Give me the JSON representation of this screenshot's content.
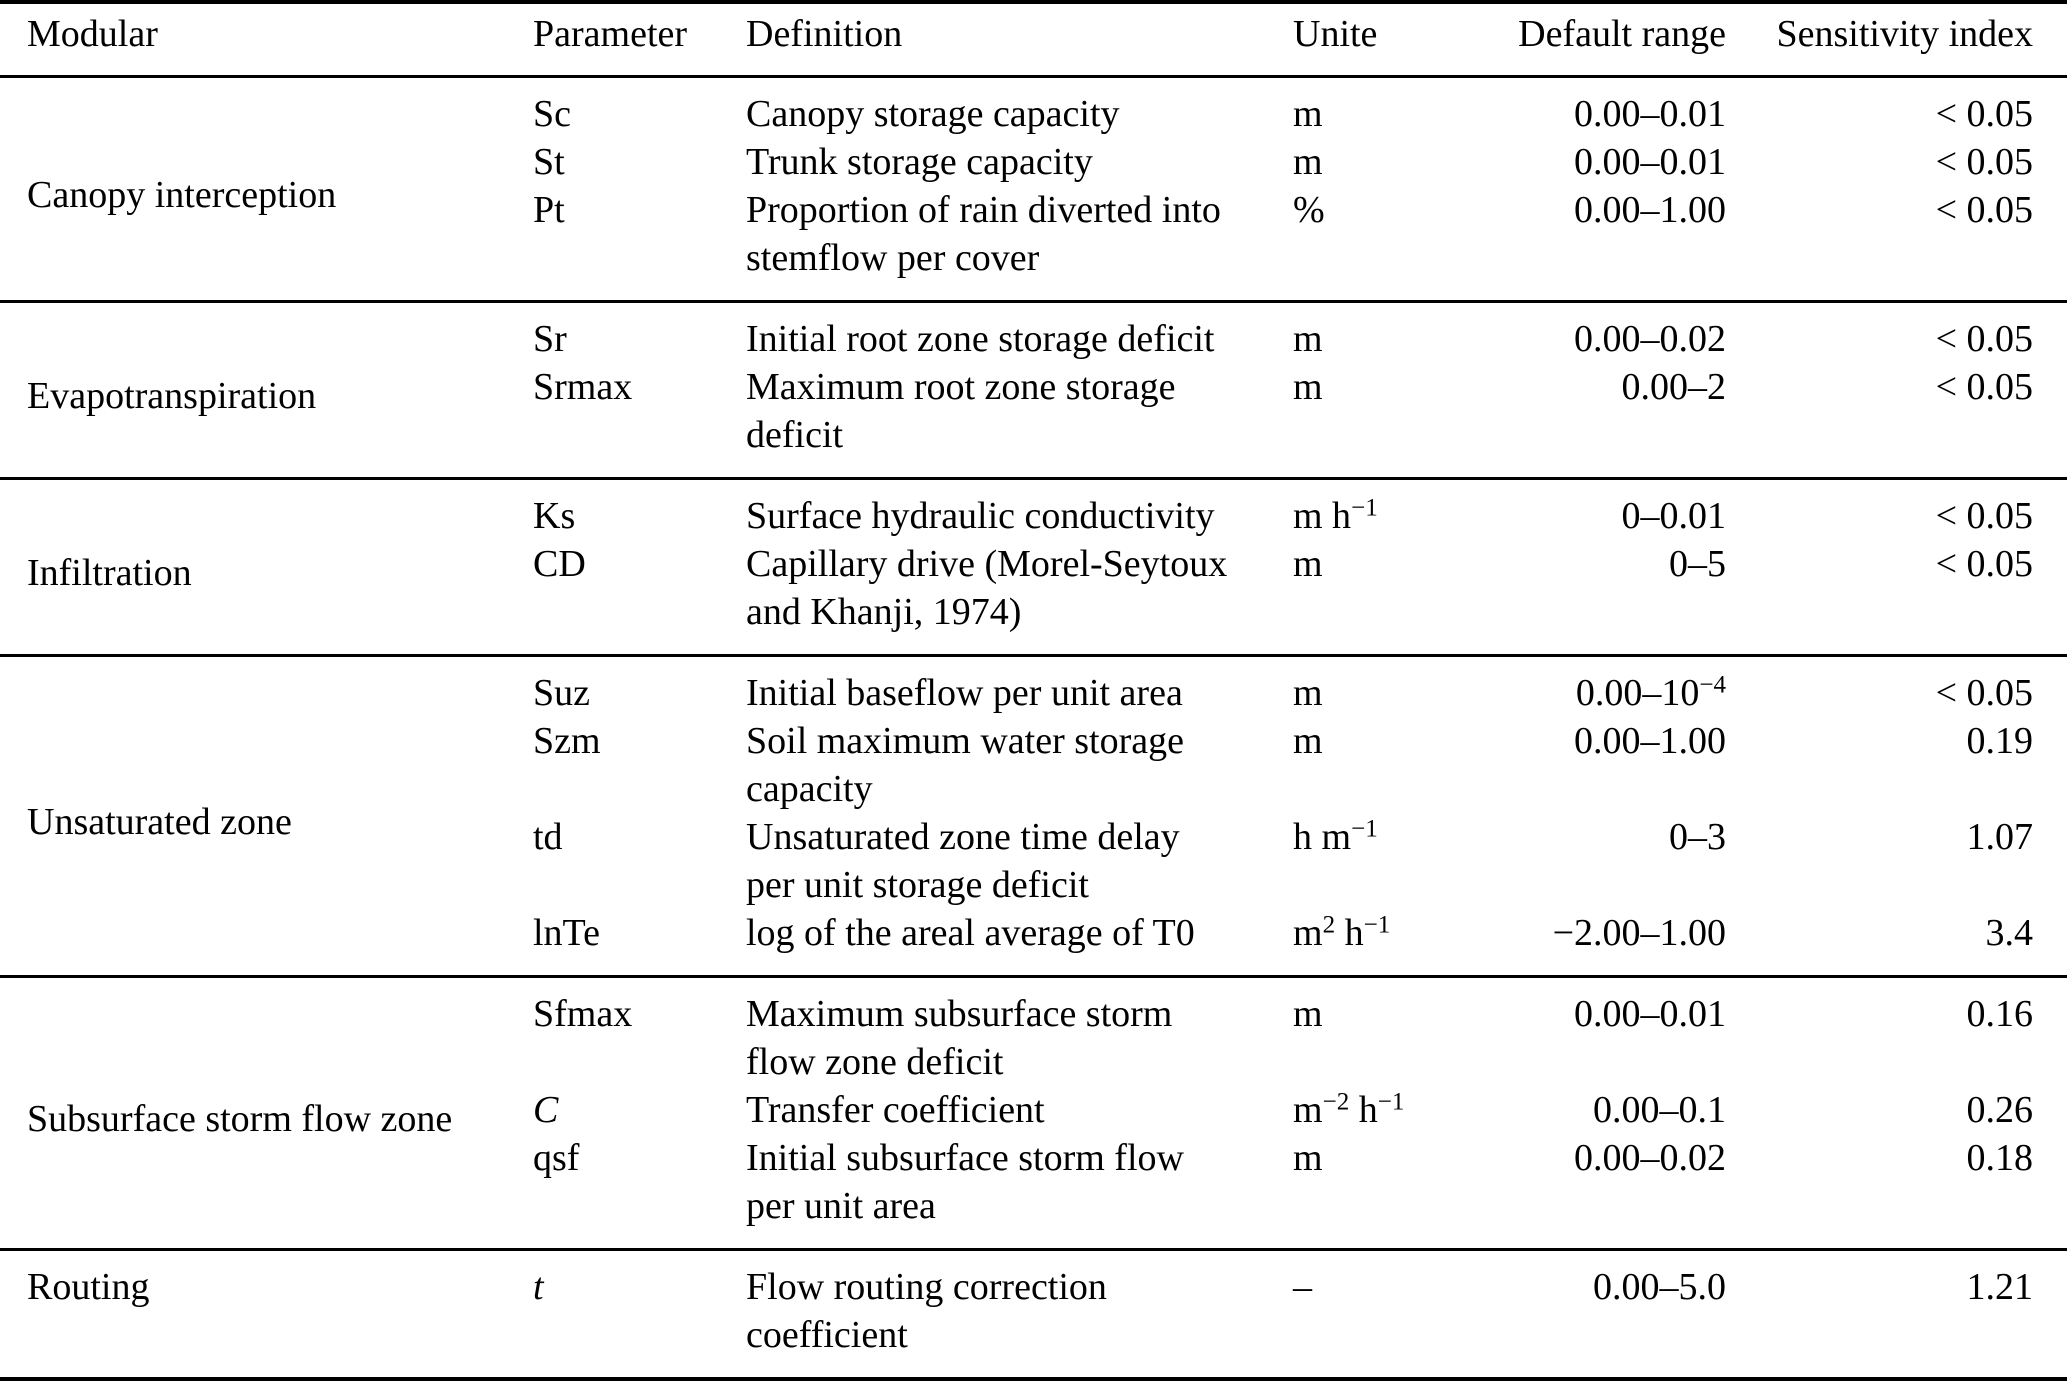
{
  "table": {
    "headers": {
      "modular": "Modular",
      "parameter": "Parameter",
      "definition": "Definition",
      "unite": "Unite",
      "default_range": "Default range",
      "sensitivity_index": "Sensitivity index"
    },
    "sections": [
      {
        "modular": "Canopy interception",
        "rows": [
          {
            "parameter": "Sc",
            "definition": "Canopy storage capacity",
            "unite": "m",
            "default_range": "0.00–0.01",
            "sensitivity_index": "< 0.05"
          },
          {
            "parameter": "St",
            "definition": "Trunk storage capacity",
            "unite": "m",
            "default_range": "0.00–0.01",
            "sensitivity_index": "< 0.05"
          },
          {
            "parameter": "Pt",
            "definition": "Proportion of rain diverted into\nstemflow per cover",
            "unite": "%",
            "default_range": "0.00–1.00",
            "sensitivity_index": "< 0.05"
          }
        ]
      },
      {
        "modular": "Evapotranspiration",
        "rows": [
          {
            "parameter": "Sr",
            "definition": "Initial root zone storage deficit",
            "unite": "m",
            "default_range": "0.00–0.02",
            "sensitivity_index": "< 0.05"
          },
          {
            "parameter": "Srmax",
            "definition": "Maximum root zone storage\ndeficit",
            "unite": "m",
            "default_range": "0.00–2",
            "sensitivity_index": "< 0.05"
          }
        ]
      },
      {
        "modular": "Infiltration",
        "rows": [
          {
            "parameter": "Ks",
            "definition": "Surface hydraulic conductivity",
            "unite": "m h^{−1}",
            "default_range": "0–0.01",
            "sensitivity_index": "< 0.05"
          },
          {
            "parameter": "CD",
            "definition": "Capillary drive (Morel-Seytoux\nand Khanji, 1974)",
            "unite": "m",
            "default_range": "0–5",
            "sensitivity_index": "< 0.05"
          }
        ]
      },
      {
        "modular": "Unsaturated zone",
        "rows": [
          {
            "parameter": "Suz",
            "definition": "Initial baseflow per unit area",
            "unite": "m",
            "default_range": "0.00–10^{−4}",
            "sensitivity_index": "< 0.05"
          },
          {
            "parameter": "Szm",
            "definition": "Soil maximum water storage\ncapacity",
            "unite": "m",
            "default_range": "0.00–1.00",
            "sensitivity_index": "0.19"
          },
          {
            "parameter": "td",
            "definition": "Unsaturated zone time delay\nper unit storage deficit",
            "unite": "h m^{−1}",
            "default_range": "0–3",
            "sensitivity_index": "1.07"
          },
          {
            "parameter": "lnTe",
            "definition": "log of the areal average of T0",
            "unite": "m^{2} h^{−1}",
            "default_range": "−2.00–1.00",
            "sensitivity_index": "3.4"
          }
        ]
      },
      {
        "modular": "Subsurface storm flow zone",
        "rows": [
          {
            "parameter": "Sfmax",
            "definition": "Maximum subsurface storm\nflow zone deficit",
            "unite": "m",
            "default_range": "0.00–0.01",
            "sensitivity_index": "0.16"
          },
          {
            "parameter": "C",
            "italic": true,
            "definition": "Transfer coefficient",
            "unite": "m^{−2} h^{−1}",
            "default_range": "0.00–0.1",
            "sensitivity_index": "0.26"
          },
          {
            "parameter": "qsf",
            "definition": "Initial subsurface storm flow\nper unit area",
            "unite": "m",
            "default_range": "0.00–0.02",
            "sensitivity_index": "0.18"
          }
        ]
      },
      {
        "modular": "Routing",
        "rows": [
          {
            "parameter": "t",
            "italic": true,
            "definition": "Flow routing correction\ncoefficient",
            "unite": "–",
            "default_range": "0.00–5.0",
            "sensitivity_index": "1.21"
          }
        ]
      }
    ]
  }
}
